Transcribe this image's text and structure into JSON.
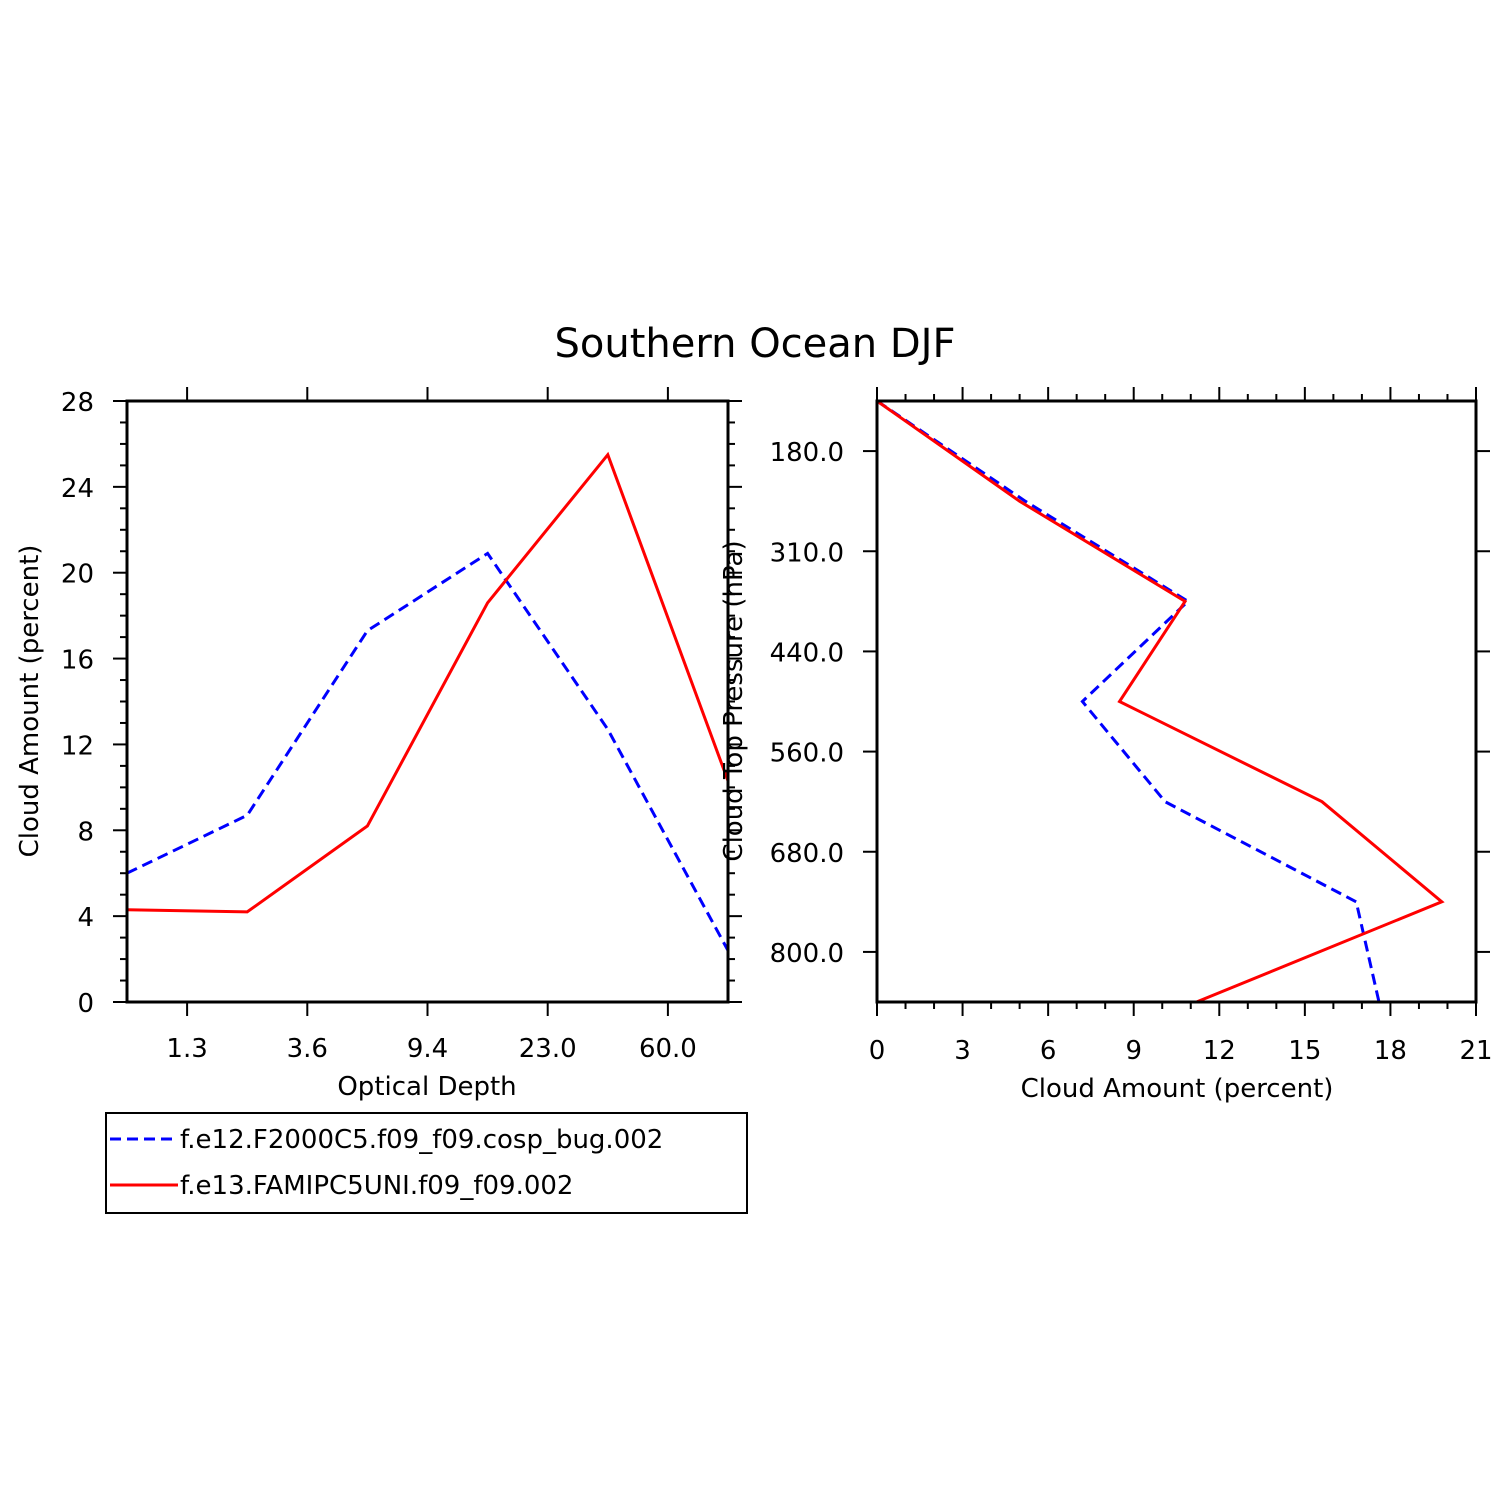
{
  "title": "Southern Ocean DJF",
  "colors": {
    "series_1": "#0000ff",
    "series_2": "#ff0000",
    "axis": "#000000"
  },
  "legend": {
    "placement": "below-left",
    "entries": [
      {
        "label": "f.e12.F2000C5.f09_f09.cosp_bug.002",
        "color": "#0000ff",
        "style": "dashed"
      },
      {
        "label": "f.e13.FAMIPC5UNI.f09_f09.002",
        "color": "#ff0000",
        "style": "solid"
      }
    ]
  },
  "chart_data": [
    {
      "type": "line",
      "xlabel": "Optical Depth",
      "ylabel": "Cloud Amount (percent)",
      "x_index_range": [
        0,
        5
      ],
      "x_tick_positions": [
        0.5,
        1.5,
        2.5,
        3.5,
        4.5
      ],
      "x_tick_labels": [
        "1.3",
        "3.6",
        "9.4",
        "23.0",
        "60.0"
      ],
      "ylim": [
        0,
        28
      ],
      "y_ticks": [
        0,
        4,
        8,
        12,
        16,
        20,
        24,
        28
      ],
      "y_tick_labels": [
        "0",
        "4",
        "8",
        "12",
        "16",
        "20",
        "24",
        "28"
      ],
      "x": [
        0,
        1,
        2,
        3,
        4,
        5
      ],
      "series": [
        {
          "name": "f.e12.F2000C5.f09_f09.cosp_bug.002",
          "color": "#0000ff",
          "style": "dashed",
          "values": [
            6.0,
            8.7,
            17.3,
            20.9,
            12.7,
            2.4
          ]
        },
        {
          "name": "f.e13.FAMIPC5UNI.f09_f09.002",
          "color": "#ff0000",
          "style": "solid",
          "values": [
            4.3,
            4.2,
            8.2,
            18.6,
            25.5,
            10.3
          ]
        }
      ]
    },
    {
      "type": "line",
      "xlabel": "Cloud Amount (percent)",
      "ylabel": "Cloud Top Pressure (hPa)",
      "xlim": [
        0,
        21
      ],
      "x_ticks": [
        0,
        3,
        6,
        9,
        12,
        15,
        18,
        21
      ],
      "x_tick_labels": [
        "0",
        "3",
        "6",
        "9",
        "12",
        "15",
        "18",
        "21"
      ],
      "y_index_range": [
        0,
        6
      ],
      "y_tick_positions": [
        0.5,
        1.5,
        2.5,
        3.5,
        4.5,
        5.5
      ],
      "y_tick_labels": [
        "180.0",
        "310.0",
        "440.0",
        "560.0",
        "680.0",
        "800.0"
      ],
      "y": [
        0,
        1,
        2,
        3,
        4,
        5,
        6
      ],
      "series": [
        {
          "name": "f.e12.F2000C5.f09_f09.cosp_bug.002",
          "color": "#0000ff",
          "style": "dashed",
          "values": [
            0.0,
            5.2,
            10.9,
            7.2,
            10.1,
            16.8,
            17.6
          ]
        },
        {
          "name": "f.e13.FAMIPC5UNI.f09_f09.002",
          "color": "#ff0000",
          "style": "solid",
          "values": [
            0.0,
            5.0,
            10.8,
            8.5,
            15.6,
            19.8,
            11.2
          ]
        }
      ]
    }
  ]
}
